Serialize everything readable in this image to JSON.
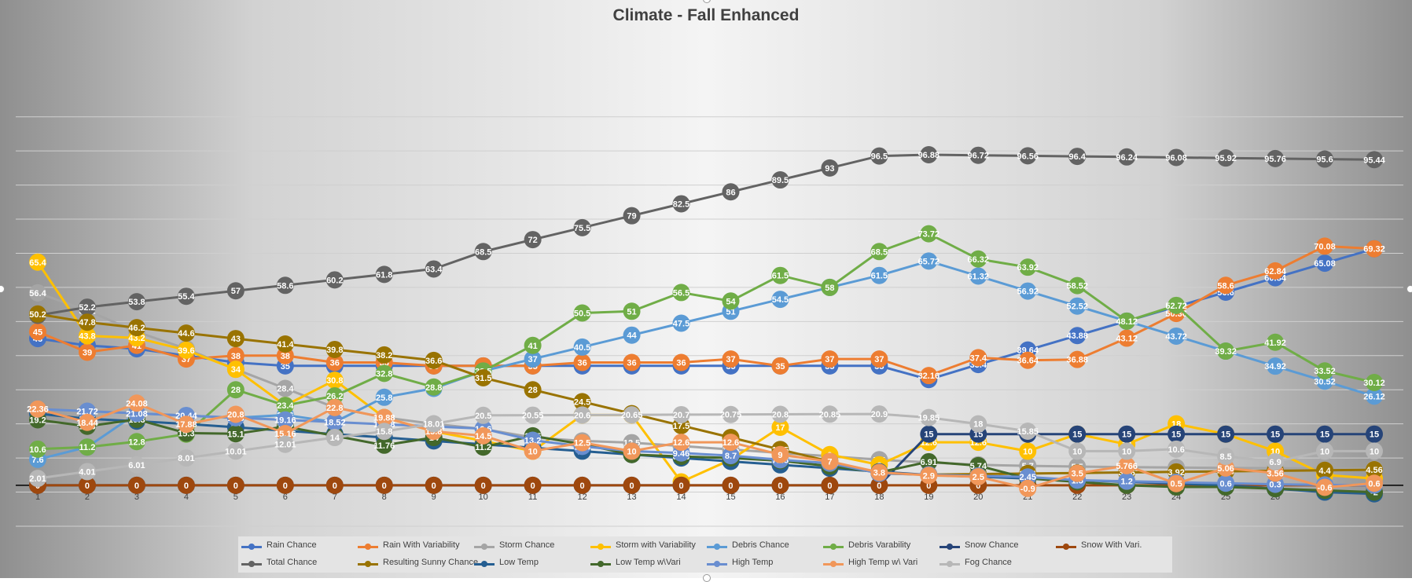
{
  "chart_data": {
    "type": "line",
    "title": "Climate - Fall Enhanced",
    "x": [
      "1",
      "2",
      "3",
      "4",
      "5",
      "6",
      "7",
      "8",
      "9",
      "10",
      "11",
      "12",
      "13",
      "14",
      "15",
      "16",
      "17",
      "18",
      "19",
      "20",
      "21",
      "22",
      "23",
      "24",
      "25",
      "26",
      "27",
      "28"
    ],
    "ylim": [
      -12,
      110
    ],
    "grid": true,
    "legend_position": "bottom",
    "series": [
      {
        "name": "Rain Chance",
        "color": "#4472C4",
        "values": [
          43,
          41,
          40,
          38,
          36,
          35,
          35,
          35,
          35,
          35,
          35,
          35,
          35,
          35,
          35,
          35,
          35,
          35,
          31,
          35.4,
          39.64,
          43.88,
          48.12,
          52.36,
          56.6,
          60.84,
          65.08,
          69.32
        ]
      },
      {
        "name": "Rain With Variability",
        "color": "#ED7D31",
        "values": [
          45,
          39,
          41,
          37,
          38,
          38,
          36,
          36,
          35,
          35,
          35,
          36,
          36,
          36,
          37,
          35,
          37,
          37,
          32.16,
          37.4,
          36.64,
          36.88,
          43.12,
          50.36,
          58.6,
          62.84,
          70.08,
          69.32
        ]
      },
      {
        "name": "Storm Chance",
        "color": "#A5A5A5",
        "values": [
          56.4,
          51.2,
          45,
          40,
          34,
          28.4,
          22.8,
          19.88,
          18,
          16.5,
          14,
          13,
          12.5,
          11.5,
          10.5,
          9.5,
          8.5,
          7.5,
          6.7,
          6,
          5.7,
          5.5,
          5.3,
          5.2,
          5.1,
          5,
          4.9,
          4.8
        ]
      },
      {
        "name": "Storm with Variability",
        "color": "#FFC000",
        "values": [
          65.4,
          43.8,
          43.2,
          39.6,
          34,
          23.4,
          30.8,
          19.88,
          15.8,
          13,
          10,
          20.6,
          20.6,
          1,
          7.5,
          17,
          9,
          6,
          12.6,
          12.6,
          10,
          15,
          12,
          18,
          15,
          10,
          3,
          2
        ]
      },
      {
        "name": "Debris Chance",
        "color": "#5B9BD5",
        "values": [
          7.6,
          11.2,
          21.08,
          20.44,
          19.8,
          20.6,
          18.52,
          25.8,
          28.4,
          33.5,
          37,
          40.5,
          44,
          47.5,
          51,
          54.5,
          58,
          61.5,
          65.72,
          61.32,
          56.92,
          52.52,
          48.12,
          43.72,
          39.32,
          34.92,
          30.52,
          26.12
        ]
      },
      {
        "name": "Debris Varability",
        "color": "#70AD47",
        "values": [
          10.6,
          11.2,
          12.8,
          15,
          28,
          23.4,
          26.2,
          32.8,
          28.8,
          33.5,
          41,
          50.5,
          51,
          56.5,
          54,
          61.5,
          58,
          68.5,
          73.72,
          66.32,
          63.92,
          58.52,
          48.12,
          52.72,
          39.32,
          41.92,
          33.52,
          30.12
        ]
      },
      {
        "name": "Snow Chance",
        "color": "#264478",
        "values": [
          0,
          0,
          0,
          0,
          0,
          0,
          0,
          0,
          0,
          0,
          0,
          0,
          0,
          0,
          0,
          0,
          0,
          0,
          15,
          15,
          15,
          15,
          15,
          15,
          15,
          15,
          15,
          15
        ]
      },
      {
        "name": "Snow With Vari.",
        "color": "#9E480E",
        "values": [
          0,
          0,
          0,
          0,
          0,
          0,
          0,
          0,
          0,
          0,
          0,
          0,
          0,
          0,
          0,
          0,
          0,
          0,
          0,
          0,
          0,
          0,
          0,
          0,
          0,
          0,
          0,
          0
        ]
      },
      {
        "name": "Total Chance",
        "color": "#636363",
        "values": [
          49.8,
          52.2,
          53.8,
          55.4,
          57,
          58.6,
          60.2,
          61.8,
          63.4,
          68.5,
          72,
          75.5,
          79,
          82.5,
          86,
          89.5,
          93,
          96.5,
          96.88,
          96.72,
          96.56,
          96.4,
          96.24,
          96.08,
          95.92,
          95.76,
          95.6,
          95.44
        ]
      },
      {
        "name": "Resulting Sunny Chance",
        "color": "#997300",
        "values": [
          50.2,
          47.8,
          46.2,
          44.6,
          43,
          41.4,
          39.8,
          38.2,
          36.6,
          31.5,
          28,
          24.5,
          21,
          17.5,
          14,
          10.5,
          7,
          3.5,
          3.12,
          3.28,
          3.44,
          3.6,
          3.76,
          3.92,
          4.08,
          4.24,
          4.4,
          4.56
        ]
      },
      {
        "name": "Low Temp",
        "color": "#255E91",
        "values": [
          21,
          19.5,
          18.8,
          18,
          17,
          16,
          15,
          14,
          13,
          12,
          11,
          10,
          9,
          8,
          7,
          6,
          5,
          4,
          3,
          2.5,
          2,
          1.5,
          1,
          0.5,
          0,
          -1,
          -2,
          -2.5
        ]
      },
      {
        "name": "Low Temp w\\Vari",
        "color": "#43682B",
        "values": [
          19.2,
          17.3,
          19.3,
          15.3,
          15.1,
          17.2,
          14.5,
          11.76,
          14,
          11.2,
          14.5,
          12,
          9,
          8.46,
          8,
          7.2,
          5.6,
          3.8,
          6.91,
          5.74,
          2,
          1,
          0,
          -0.5,
          -0.5,
          -1,
          -1.5,
          -2
        ]
      },
      {
        "name": "High Temp",
        "color": "#698ED0",
        "values": [
          22.36,
          21.72,
          21.08,
          20.44,
          19.8,
          19.16,
          18.52,
          17.88,
          17.24,
          16.6,
          13.2,
          11.4,
          10,
          9.46,
          8.7,
          7.48,
          6.48,
          3.5,
          3.1,
          2.73,
          2.45,
          1.5,
          1.2,
          0.9,
          0.6,
          0.3,
          0.1,
          0.05
        ]
      },
      {
        "name": "High Temp w\\ Vari",
        "color": "#F1975A",
        "values": [
          22.36,
          18.44,
          24.08,
          17.88,
          20.8,
          15.16,
          22.8,
          19.88,
          15.8,
          14.5,
          10,
          12.5,
          10,
          12.6,
          12.6,
          9,
          7,
          3.8,
          2.9,
          2.5,
          -0.9,
          3.5,
          5.766,
          0.5,
          5.06,
          3.56,
          -0.6,
          0.6
        ]
      },
      {
        "name": "Fog Chance",
        "color": "#B7B7B7",
        "values": [
          2.01,
          4.01,
          6.01,
          8.01,
          10.01,
          12.01,
          14,
          15.8,
          18.01,
          20.5,
          20.55,
          20.6,
          20.65,
          20.7,
          20.75,
          20.8,
          20.85,
          20.9,
          19.85,
          18,
          15.85,
          10,
          10,
          10.6,
          8.5,
          6.9,
          10,
          10
        ]
      }
    ]
  }
}
